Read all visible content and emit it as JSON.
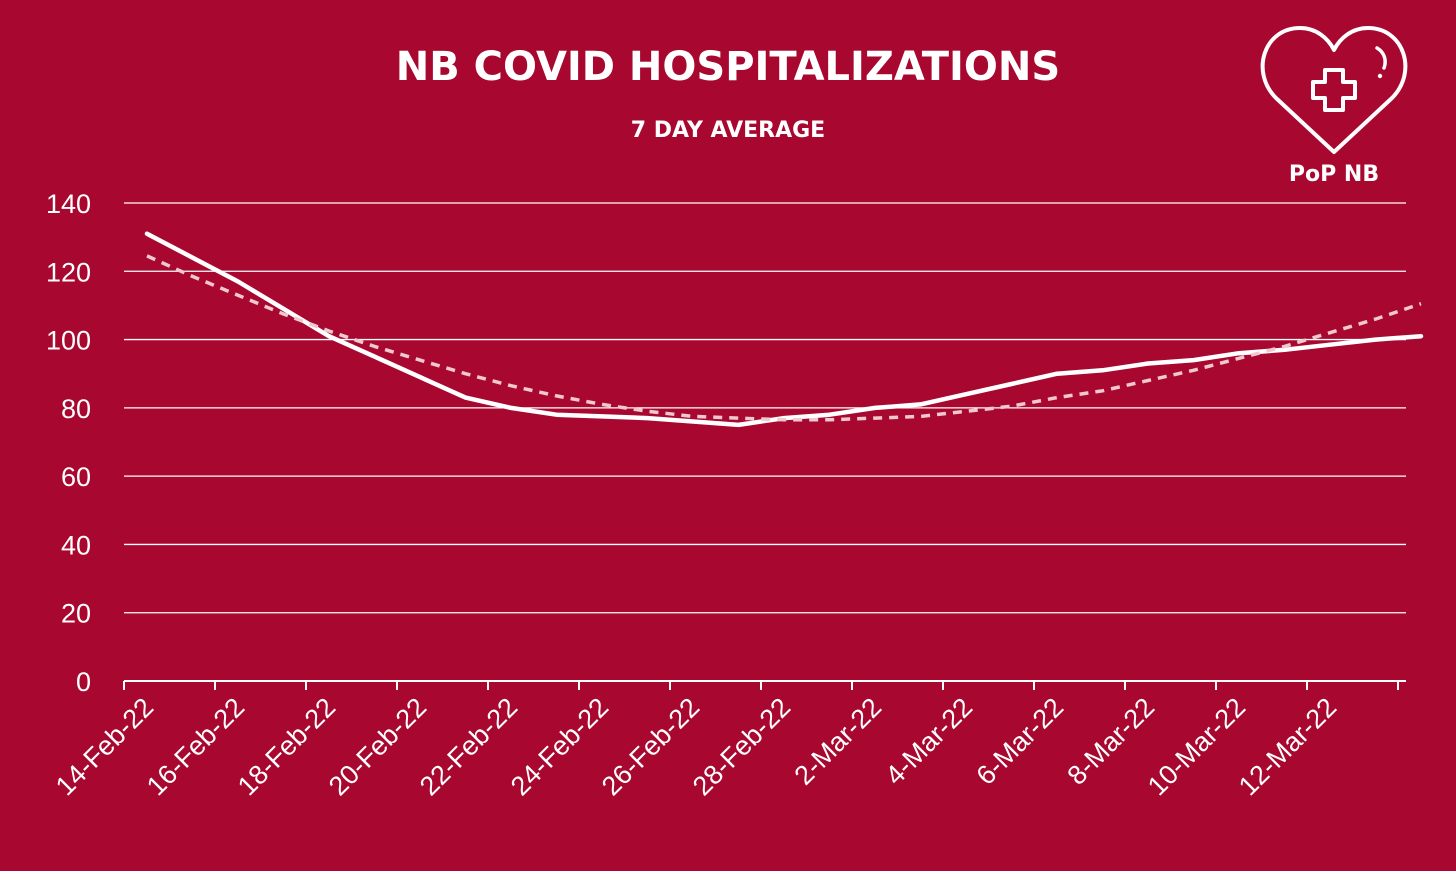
{
  "header": {
    "title": "NB COVID HOSPITALIZATIONS",
    "subtitle": "7 DAY AVERAGE"
  },
  "logo": {
    "icon": "heart-with-cross-icon",
    "text": "PoP NB"
  },
  "colors": {
    "background": "#a8072f",
    "foreground": "#ffffff",
    "trend": "#f0c8d0"
  },
  "chart_data": {
    "type": "line",
    "title": "NB COVID HOSPITALIZATIONS",
    "subtitle": "7 DAY AVERAGE",
    "xlabel": "",
    "ylabel": "",
    "ylim": [
      0,
      140
    ],
    "yticks": [
      0,
      20,
      40,
      60,
      80,
      100,
      120,
      140
    ],
    "grid": true,
    "legend": "none",
    "x_tick_labels": [
      "14-Feb-22",
      "16-Feb-22",
      "18-Feb-22",
      "20-Feb-22",
      "22-Feb-22",
      "24-Feb-22",
      "26-Feb-22",
      "28-Feb-22",
      "2-Mar-22",
      "4-Mar-22",
      "6-Mar-22",
      "8-Mar-22",
      "10-Mar-22",
      "12-Mar-22"
    ],
    "x": [
      "14-Feb-22",
      "15-Feb-22",
      "16-Feb-22",
      "17-Feb-22",
      "18-Feb-22",
      "19-Feb-22",
      "20-Feb-22",
      "21-Feb-22",
      "22-Feb-22",
      "23-Feb-22",
      "24-Feb-22",
      "25-Feb-22",
      "26-Feb-22",
      "27-Feb-22",
      "28-Feb-22",
      "1-Mar-22",
      "2-Mar-22",
      "3-Mar-22",
      "4-Mar-22",
      "5-Mar-22",
      "6-Mar-22",
      "7-Mar-22",
      "8-Mar-22",
      "9-Mar-22",
      "10-Mar-22",
      "11-Mar-22",
      "12-Mar-22",
      "13-Mar-22",
      "14-Mar-22"
    ],
    "series": [
      {
        "style": "solid",
        "values": [
          131,
          124,
          117,
          109,
          101,
          95,
          89,
          83,
          80,
          78,
          77.5,
          77,
          76,
          75,
          77,
          78,
          80,
          81,
          84,
          87,
          90,
          91,
          93,
          94,
          96,
          97,
          98.5,
          100,
          101
        ]
      },
      {
        "style": "dashed",
        "values": [
          124.5,
          118.5,
          113,
          107.5,
          102.5,
          98,
          94,
          90,
          86.5,
          83.5,
          81,
          79,
          77.5,
          77,
          76.5,
          76.5,
          77,
          77.5,
          79,
          80.5,
          83,
          85,
          88,
          91,
          94.5,
          98,
          102,
          106,
          110.5
        ]
      }
    ]
  }
}
